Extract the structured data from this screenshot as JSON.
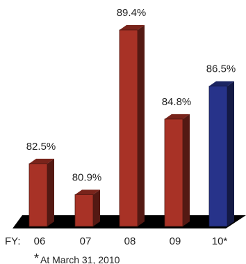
{
  "chart_data": {
    "type": "bar",
    "categories": [
      "06",
      "07",
      "08",
      "09",
      "10*"
    ],
    "values": [
      82.5,
      80.9,
      89.4,
      84.8,
      86.5
    ],
    "value_labels": [
      "82.5%",
      "80.9%",
      "89.4%",
      "84.8%",
      "86.5%"
    ],
    "x_prefix": "FY:",
    "footnote_marker": "*",
    "footnote": "At March 31, 2010",
    "ylim": [
      78,
      91
    ],
    "colors": {
      "default_bar": "#A83226",
      "highlight_bar": "#27338A",
      "floor": "#000000"
    },
    "highlight_index": 4
  }
}
